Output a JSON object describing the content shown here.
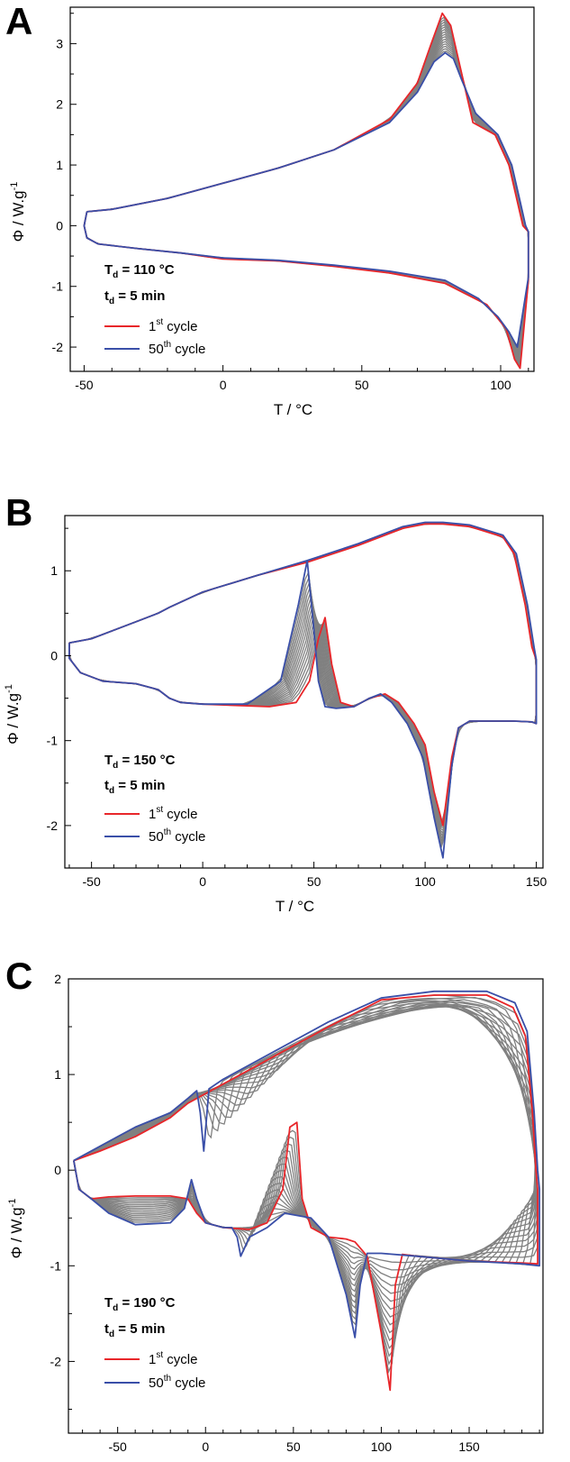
{
  "chart_data": [
    {
      "type": "line",
      "panel": "A",
      "xlabel": "T / °C",
      "ylabel": "Φ / W.g-1",
      "xlim": [
        -55,
        112
      ],
      "ylim": [
        -2.4,
        3.6
      ],
      "xticks": [
        -50,
        0,
        50,
        100
      ],
      "yticks": [
        -2,
        -1,
        0,
        1,
        2,
        3
      ],
      "conditions": {
        "td_sub_T": "110 °C",
        "td_sub_t": "5 min"
      },
      "legend": [
        {
          "label": "1st cycle",
          "color": "#e8262a"
        },
        {
          "label": "50th cycle",
          "color": "#3a4fa8"
        }
      ],
      "intermediate_cycles_color": "#808080",
      "series": [
        {
          "name": "1st cycle",
          "color": "#e8262a",
          "x": [
            -49,
            -40,
            -20,
            0,
            20,
            40,
            60,
            70,
            75,
            79,
            82,
            85,
            90,
            98,
            103,
            106,
            108,
            110,
            110,
            107,
            105,
            102,
            95,
            80,
            60,
            40,
            20,
            0,
            -15,
            -30,
            -45,
            -49,
            -50,
            -49
          ],
          "y": [
            0.23,
            0.27,
            0.45,
            0.7,
            0.95,
            1.25,
            1.75,
            2.35,
            3.0,
            3.5,
            3.3,
            2.7,
            1.7,
            1.5,
            1.0,
            0.4,
            0.0,
            -0.1,
            -0.9,
            -2.35,
            -2.2,
            -1.7,
            -1.3,
            -0.95,
            -0.78,
            -0.67,
            -0.58,
            -0.55,
            -0.45,
            -0.38,
            -0.3,
            -0.2,
            0.0,
            0.23
          ]
        },
        {
          "name": "50th cycle",
          "color": "#3a4fa8",
          "x": [
            -49,
            -40,
            -20,
            0,
            20,
            40,
            60,
            70,
            76,
            80,
            83,
            86,
            91,
            99,
            104,
            107,
            109,
            110,
            110,
            106,
            103,
            99,
            92,
            80,
            60,
            40,
            20,
            0,
            -15,
            -30,
            -45,
            -49,
            -50,
            -49
          ],
          "y": [
            0.23,
            0.27,
            0.45,
            0.7,
            0.95,
            1.25,
            1.7,
            2.2,
            2.7,
            2.85,
            2.75,
            2.4,
            1.85,
            1.5,
            1.0,
            0.4,
            0.0,
            -0.1,
            -0.85,
            -2.0,
            -1.75,
            -1.5,
            -1.2,
            -0.9,
            -0.75,
            -0.65,
            -0.57,
            -0.53,
            -0.45,
            -0.38,
            -0.3,
            -0.2,
            0.0,
            0.23
          ]
        }
      ]
    },
    {
      "type": "line",
      "panel": "B",
      "xlabel": "T / °C",
      "ylabel": "Φ / W.g-1",
      "xlim": [
        -62,
        153
      ],
      "ylim": [
        -2.5,
        1.65
      ],
      "xticks": [
        -50,
        0,
        50,
        100,
        150
      ],
      "yticks": [
        -2,
        -1,
        0,
        1
      ],
      "conditions": {
        "td_sub_T": "150 °C",
        "td_sub_t": "5 min"
      },
      "legend": [
        {
          "label": "1st cycle",
          "color": "#e8262a"
        },
        {
          "label": "50th cycle",
          "color": "#3a4fa8"
        }
      ],
      "intermediate_cycles_color": "#808080",
      "series": [
        {
          "name": "1st cycle",
          "color": "#e8262a",
          "x": [
            -60,
            -50,
            -30,
            -20,
            -15,
            0,
            25,
            47,
            70,
            90,
            100,
            108,
            120,
            135,
            140,
            145,
            148,
            150,
            150,
            148,
            140,
            120,
            115,
            112,
            108,
            104,
            100,
            95,
            88,
            82,
            75,
            68,
            62,
            58,
            55,
            52,
            48,
            42,
            30,
            0,
            -10,
            -15,
            -20,
            -30,
            -45,
            -55,
            -60,
            -60
          ],
          "y": [
            0.15,
            0.2,
            0.4,
            0.5,
            0.57,
            0.75,
            0.95,
            1.1,
            1.3,
            1.5,
            1.55,
            1.55,
            1.52,
            1.4,
            1.2,
            0.6,
            0.1,
            -0.05,
            -0.8,
            -0.78,
            -0.77,
            -0.77,
            -0.85,
            -1.2,
            -2.0,
            -1.6,
            -1.05,
            -0.8,
            -0.55,
            -0.45,
            -0.5,
            -0.6,
            -0.55,
            -0.1,
            0.45,
            0.2,
            -0.3,
            -0.55,
            -0.6,
            -0.57,
            -0.55,
            -0.5,
            -0.4,
            -0.33,
            -0.3,
            -0.2,
            -0.03,
            0.15
          ]
        },
        {
          "name": "50th cycle",
          "color": "#3a4fa8",
          "x": [
            -60,
            -50,
            -30,
            -20,
            -15,
            0,
            25,
            47,
            70,
            90,
            100,
            108,
            120,
            135,
            141,
            146,
            149,
            150,
            150,
            148,
            140,
            120,
            115,
            112,
            108,
            104,
            99,
            92,
            85,
            80,
            75,
            68,
            60,
            55,
            52,
            50,
            47,
            43,
            35,
            20,
            0,
            -10,
            -15,
            -20,
            -30,
            -45,
            -55,
            -60,
            -60
          ],
          "y": [
            0.15,
            0.2,
            0.4,
            0.5,
            0.57,
            0.75,
            0.95,
            1.12,
            1.32,
            1.52,
            1.57,
            1.57,
            1.54,
            1.42,
            1.2,
            0.6,
            0.1,
            -0.05,
            -0.8,
            -0.78,
            -0.77,
            -0.77,
            -0.85,
            -1.3,
            -2.38,
            -1.9,
            -1.2,
            -0.8,
            -0.55,
            -0.45,
            -0.5,
            -0.6,
            -0.62,
            -0.6,
            -0.3,
            0.3,
            1.12,
            0.6,
            -0.3,
            -0.57,
            -0.57,
            -0.55,
            -0.5,
            -0.4,
            -0.33,
            -0.3,
            -0.2,
            -0.03,
            0.15
          ]
        }
      ]
    },
    {
      "type": "line",
      "panel": "C",
      "xlabel": "T / °C",
      "ylabel": "Φ / W.g-1",
      "xlim": [
        -78,
        192
      ],
      "ylim": [
        -2.75,
        2.0
      ],
      "xticks": [
        -50,
        0,
        50,
        100,
        150
      ],
      "yticks": [
        -2,
        -1,
        0,
        1,
        2
      ],
      "conditions": {
        "td_sub_T": "190 °C",
        "td_sub_t": "5 min"
      },
      "legend": [
        {
          "label": "1st cycle",
          "color": "#e8262a"
        },
        {
          "label": "50th cycle",
          "color": "#3a4fa8"
        }
      ],
      "intermediate_cycles_color": "#808080",
      "series": [
        {
          "name": "1st cycle",
          "color": "#e8262a",
          "x": [
            -75,
            -60,
            -40,
            -20,
            -10,
            10,
            40,
            70,
            100,
            130,
            160,
            175,
            182,
            186,
            188,
            189,
            189,
            180,
            150,
            120,
            112,
            108,
            105,
            100,
            92,
            85,
            80,
            70,
            60,
            55,
            52,
            48,
            44,
            35,
            25,
            10,
            0,
            -5,
            -10,
            -20,
            -40,
            -55,
            -65,
            -72,
            -75
          ],
          "y": [
            0.1,
            0.2,
            0.35,
            0.55,
            0.7,
            0.9,
            1.2,
            1.5,
            1.78,
            1.83,
            1.83,
            1.7,
            1.4,
            0.6,
            0.0,
            -0.2,
            -0.98,
            -0.97,
            -0.95,
            -0.9,
            -0.88,
            -1.2,
            -2.3,
            -1.7,
            -0.9,
            -0.75,
            -0.72,
            -0.7,
            -0.6,
            -0.3,
            0.5,
            0.45,
            -0.2,
            -0.55,
            -0.62,
            -0.6,
            -0.55,
            -0.45,
            -0.3,
            -0.27,
            -0.27,
            -0.28,
            -0.3,
            -0.2,
            0.1
          ]
        },
        {
          "name": "50th cycle",
          "color": "#3a4fa8",
          "x": [
            -75,
            -60,
            -40,
            -20,
            -10,
            -5,
            -3,
            -1,
            2,
            10,
            40,
            70,
            100,
            130,
            160,
            176,
            183,
            187,
            189,
            190,
            190,
            180,
            150,
            120,
            100,
            92,
            88,
            85,
            80,
            70,
            60,
            45,
            35,
            25,
            20,
            18,
            15,
            10,
            0,
            -5,
            -8,
            -12,
            -20,
            -40,
            -55,
            -65,
            -72,
            -75
          ],
          "y": [
            0.1,
            0.25,
            0.45,
            0.6,
            0.75,
            0.83,
            0.6,
            0.2,
            0.85,
            0.95,
            1.25,
            1.55,
            1.8,
            1.87,
            1.87,
            1.75,
            1.45,
            0.6,
            0.0,
            -0.2,
            -1.0,
            -0.98,
            -0.95,
            -0.9,
            -0.87,
            -0.87,
            -1.2,
            -1.75,
            -1.3,
            -0.7,
            -0.5,
            -0.45,
            -0.6,
            -0.7,
            -0.9,
            -0.7,
            -0.6,
            -0.6,
            -0.55,
            -0.3,
            -0.1,
            -0.4,
            -0.55,
            -0.57,
            -0.45,
            -0.3,
            -0.2,
            0.1
          ]
        }
      ]
    }
  ]
}
